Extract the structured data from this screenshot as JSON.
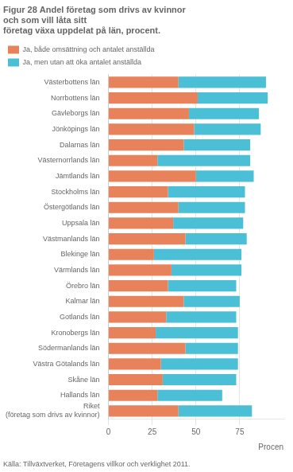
{
  "chart_data": {
    "type": "bar",
    "orientation": "horizontal",
    "stacked": true,
    "title": [
      "Figur 28 Andel företag som drivs av kvinnor",
      "och som vill låta sitt",
      "företag växa uppdelat på län, procent."
    ],
    "x_label": "Procen",
    "annotations": [
      "Källa: Tillväxtverket, Företagens villkor och verklighet 2011."
    ],
    "categories": [
      "Västerbottens län",
      "Norrbottens län",
      "Gävleborgs län",
      "Jönköpings län",
      "Dalarnas län",
      "Västernorrlands län",
      "Jämtlands län",
      "Stockholms län",
      "Östergötlands län",
      "Uppsala län",
      "Västmanlands län",
      "Blekinge län",
      "Värmlands län",
      "Örebro län",
      "Kalmar län",
      "Gotlands län",
      "Kronobergs län",
      "Södermanlands län",
      "Västra Götalands län",
      "Skåne län",
      "Hallands län",
      "Riket\n(företag som drivs av kvinnor)"
    ],
    "series": [
      {
        "name": "Ja, både omsättning och antalet anställda",
        "color": "#E8825A",
        "values": [
          40,
          51,
          46,
          49,
          43,
          28,
          50,
          34,
          40,
          37,
          44,
          26,
          36,
          34,
          43,
          33,
          27,
          44,
          30,
          31,
          28,
          40
        ]
      },
      {
        "name": "Ja, men utan att öka antalet anställda",
        "color": "#4BBFD6",
        "values": [
          50,
          40,
          40,
          38,
          38,
          53,
          33,
          44,
          38,
          40,
          35,
          50,
          40,
          39,
          32,
          40,
          47,
          30,
          44,
          42,
          37,
          42
        ]
      }
    ],
    "xlim": [
      0,
      100
    ],
    "xticks": [
      0,
      25,
      50,
      75
    ],
    "grid": true,
    "legend": "top"
  }
}
